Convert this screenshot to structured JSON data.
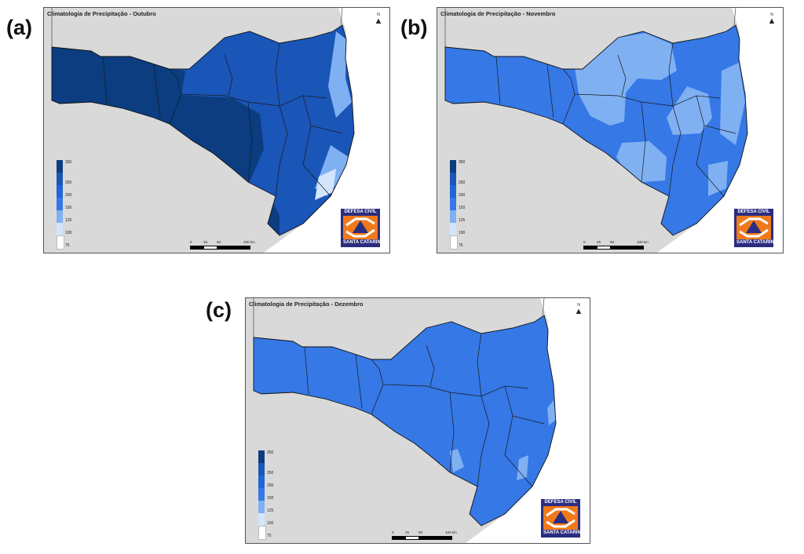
{
  "colors": {
    "c350": "#0b3d80",
    "c250": "#1a55b8",
    "c200": "#1f66d6",
    "c150": "#3578e6",
    "c125": "#7fb0f2",
    "c100": "#d2e5fb",
    "c75": "#ffffff",
    "background": "#d9d9d9",
    "logo_blue": "#2b2d80",
    "logo_orange": "#f07a1a"
  },
  "legend": {
    "labels": [
      "350",
      "250",
      "200",
      "150",
      "125",
      "100",
      "75"
    ]
  },
  "scalebar": {
    "labels": [
      "0",
      "25",
      "50",
      "100 km"
    ]
  },
  "logo": {
    "top_text": "DEFESA CIVIL",
    "bottom_text": "SANTA CATARINA"
  },
  "north_label": "N",
  "panels": [
    {
      "label": "(a)",
      "title": "Climatologia de Precipitação - Outubro",
      "dominant": "c250"
    },
    {
      "label": "(b)",
      "title": "Climatologia de Precipitação - Novembro",
      "dominant": "c150"
    },
    {
      "label": "(c)",
      "title": "Climatologia de Precipitação - Dezembro",
      "dominant": "c150"
    }
  ]
}
